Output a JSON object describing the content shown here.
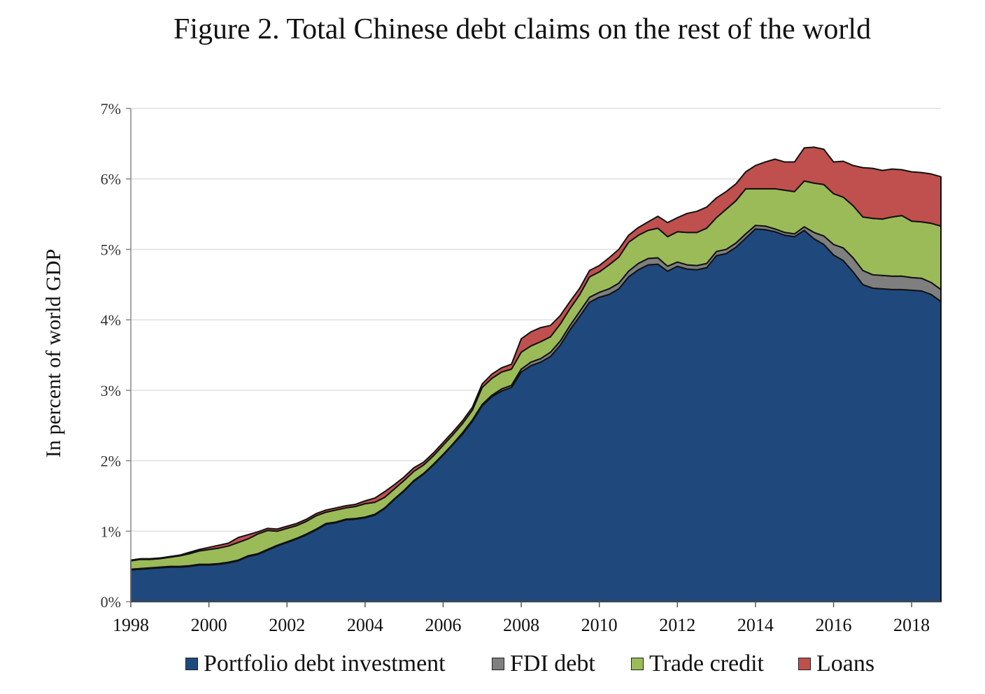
{
  "chart_data": {
    "type": "area",
    "stacked": true,
    "title": "Figure 2. Total Chinese debt claims on the rest of the world",
    "ylabel": "In percent of world GDP",
    "xlabel": "",
    "xlim": [
      1998,
      2018.75
    ],
    "ylim": [
      0,
      7
    ],
    "x_ticks": [
      1998,
      2000,
      2002,
      2004,
      2006,
      2008,
      2010,
      2012,
      2014,
      2016,
      2018
    ],
    "x_tick_labels": [
      "1998",
      "2000",
      "2002",
      "2004",
      "2006",
      "2008",
      "2010",
      "2012",
      "2014",
      "2016",
      "2018"
    ],
    "y_ticks": [
      0,
      1,
      2,
      3,
      4,
      5,
      6,
      7
    ],
    "y_tick_labels": [
      "0%",
      "1%",
      "2%",
      "3%",
      "4%",
      "5%",
      "6%",
      "7%"
    ],
    "grid": "horizontal",
    "legend_position": "bottom",
    "x": [
      1998,
      1998.25,
      1998.5,
      1998.75,
      1999,
      1999.25,
      1999.5,
      1999.75,
      2000,
      2000.25,
      2000.5,
      2000.75,
      2001,
      2001.25,
      2001.5,
      2001.75,
      2002,
      2002.25,
      2002.5,
      2002.75,
      2003,
      2003.25,
      2003.5,
      2003.75,
      2004,
      2004.25,
      2004.5,
      2004.75,
      2005,
      2005.25,
      2005.5,
      2005.75,
      2006,
      2006.25,
      2006.5,
      2006.75,
      2007,
      2007.25,
      2007.5,
      2007.75,
      2008,
      2008.25,
      2008.5,
      2008.75,
      2009,
      2009.25,
      2009.5,
      2009.75,
      2010,
      2010.25,
      2010.5,
      2010.75,
      2011,
      2011.25,
      2011.5,
      2011.75,
      2012,
      2012.25,
      2012.5,
      2012.75,
      2013,
      2013.25,
      2013.5,
      2013.75,
      2014,
      2014.25,
      2014.5,
      2014.75,
      2015,
      2015.25,
      2015.5,
      2015.75,
      2016,
      2016.25,
      2016.5,
      2016.75,
      2017,
      2017.25,
      2017.5,
      2017.75,
      2018,
      2018.25,
      2018.5,
      2018.75
    ],
    "series": [
      {
        "name": "Portfolio debt investment",
        "color": "#1f497d",
        "values": [
          0.45,
          0.46,
          0.47,
          0.48,
          0.49,
          0.49,
          0.5,
          0.52,
          0.52,
          0.53,
          0.55,
          0.58,
          0.64,
          0.67,
          0.73,
          0.79,
          0.84,
          0.89,
          0.95,
          1.02,
          1.1,
          1.12,
          1.16,
          1.17,
          1.19,
          1.23,
          1.32,
          1.45,
          1.57,
          1.71,
          1.81,
          1.94,
          2.08,
          2.23,
          2.38,
          2.56,
          2.78,
          2.91,
          2.99,
          3.04,
          3.26,
          3.35,
          3.4,
          3.48,
          3.64,
          3.86,
          4.05,
          4.25,
          4.32,
          4.36,
          4.44,
          4.61,
          4.71,
          4.78,
          4.79,
          4.69,
          4.76,
          4.72,
          4.71,
          4.74,
          4.91,
          4.94,
          5.03,
          5.16,
          5.29,
          5.28,
          5.25,
          5.2,
          5.18,
          5.27,
          5.15,
          5.07,
          4.92,
          4.84,
          4.68,
          4.5,
          4.45,
          4.44,
          4.43,
          4.43,
          4.42,
          4.41,
          4.36,
          4.26
        ]
      },
      {
        "name": "FDI debt",
        "color": "#7f7f7f",
        "values": [
          0.01,
          0.01,
          0.01,
          0.01,
          0.01,
          0.01,
          0.01,
          0.01,
          0.01,
          0.01,
          0.01,
          0.01,
          0.01,
          0.01,
          0.01,
          0.01,
          0.01,
          0.01,
          0.01,
          0.01,
          0.01,
          0.01,
          0.01,
          0.01,
          0.01,
          0.01,
          0.01,
          0.01,
          0.01,
          0.01,
          0.01,
          0.01,
          0.01,
          0.01,
          0.02,
          0.02,
          0.02,
          0.02,
          0.03,
          0.03,
          0.04,
          0.05,
          0.05,
          0.06,
          0.06,
          0.06,
          0.07,
          0.07,
          0.07,
          0.08,
          0.08,
          0.08,
          0.09,
          0.09,
          0.09,
          0.07,
          0.06,
          0.06,
          0.06,
          0.06,
          0.06,
          0.06,
          0.06,
          0.06,
          0.05,
          0.05,
          0.04,
          0.04,
          0.04,
          0.05,
          0.09,
          0.12,
          0.15,
          0.18,
          0.2,
          0.2,
          0.19,
          0.19,
          0.19,
          0.19,
          0.18,
          0.18,
          0.17,
          0.17
        ]
      },
      {
        "name": "Trade credit",
        "color": "#9bbb59",
        "values": [
          0.12,
          0.13,
          0.12,
          0.12,
          0.13,
          0.15,
          0.17,
          0.19,
          0.21,
          0.22,
          0.23,
          0.25,
          0.24,
          0.28,
          0.27,
          0.2,
          0.19,
          0.18,
          0.18,
          0.19,
          0.16,
          0.17,
          0.16,
          0.17,
          0.19,
          0.17,
          0.15,
          0.14,
          0.14,
          0.13,
          0.12,
          0.12,
          0.13,
          0.13,
          0.13,
          0.14,
          0.24,
          0.24,
          0.24,
          0.23,
          0.24,
          0.23,
          0.24,
          0.22,
          0.24,
          0.24,
          0.24,
          0.29,
          0.29,
          0.34,
          0.37,
          0.41,
          0.4,
          0.4,
          0.42,
          0.42,
          0.43,
          0.46,
          0.47,
          0.5,
          0.48,
          0.57,
          0.6,
          0.64,
          0.52,
          0.53,
          0.57,
          0.6,
          0.6,
          0.65,
          0.7,
          0.73,
          0.72,
          0.72,
          0.74,
          0.76,
          0.8,
          0.8,
          0.84,
          0.86,
          0.8,
          0.8,
          0.84,
          0.9
        ]
      },
      {
        "name": "Loans",
        "color": "#c0504d",
        "values": [
          0.01,
          0.01,
          0.01,
          0.01,
          0.01,
          0.01,
          0.02,
          0.02,
          0.03,
          0.04,
          0.04,
          0.07,
          0.06,
          0.03,
          0.03,
          0.03,
          0.03,
          0.03,
          0.03,
          0.03,
          0.03,
          0.03,
          0.03,
          0.03,
          0.04,
          0.06,
          0.08,
          0.06,
          0.05,
          0.05,
          0.04,
          0.04,
          0.04,
          0.04,
          0.04,
          0.04,
          0.05,
          0.06,
          0.06,
          0.07,
          0.19,
          0.2,
          0.2,
          0.16,
          0.12,
          0.1,
          0.09,
          0.09,
          0.09,
          0.1,
          0.11,
          0.1,
          0.11,
          0.12,
          0.17,
          0.2,
          0.2,
          0.27,
          0.3,
          0.3,
          0.28,
          0.25,
          0.24,
          0.24,
          0.33,
          0.38,
          0.42,
          0.4,
          0.42,
          0.47,
          0.51,
          0.5,
          0.45,
          0.51,
          0.57,
          0.7,
          0.71,
          0.69,
          0.68,
          0.65,
          0.7,
          0.7,
          0.7,
          0.7
        ]
      }
    ]
  }
}
